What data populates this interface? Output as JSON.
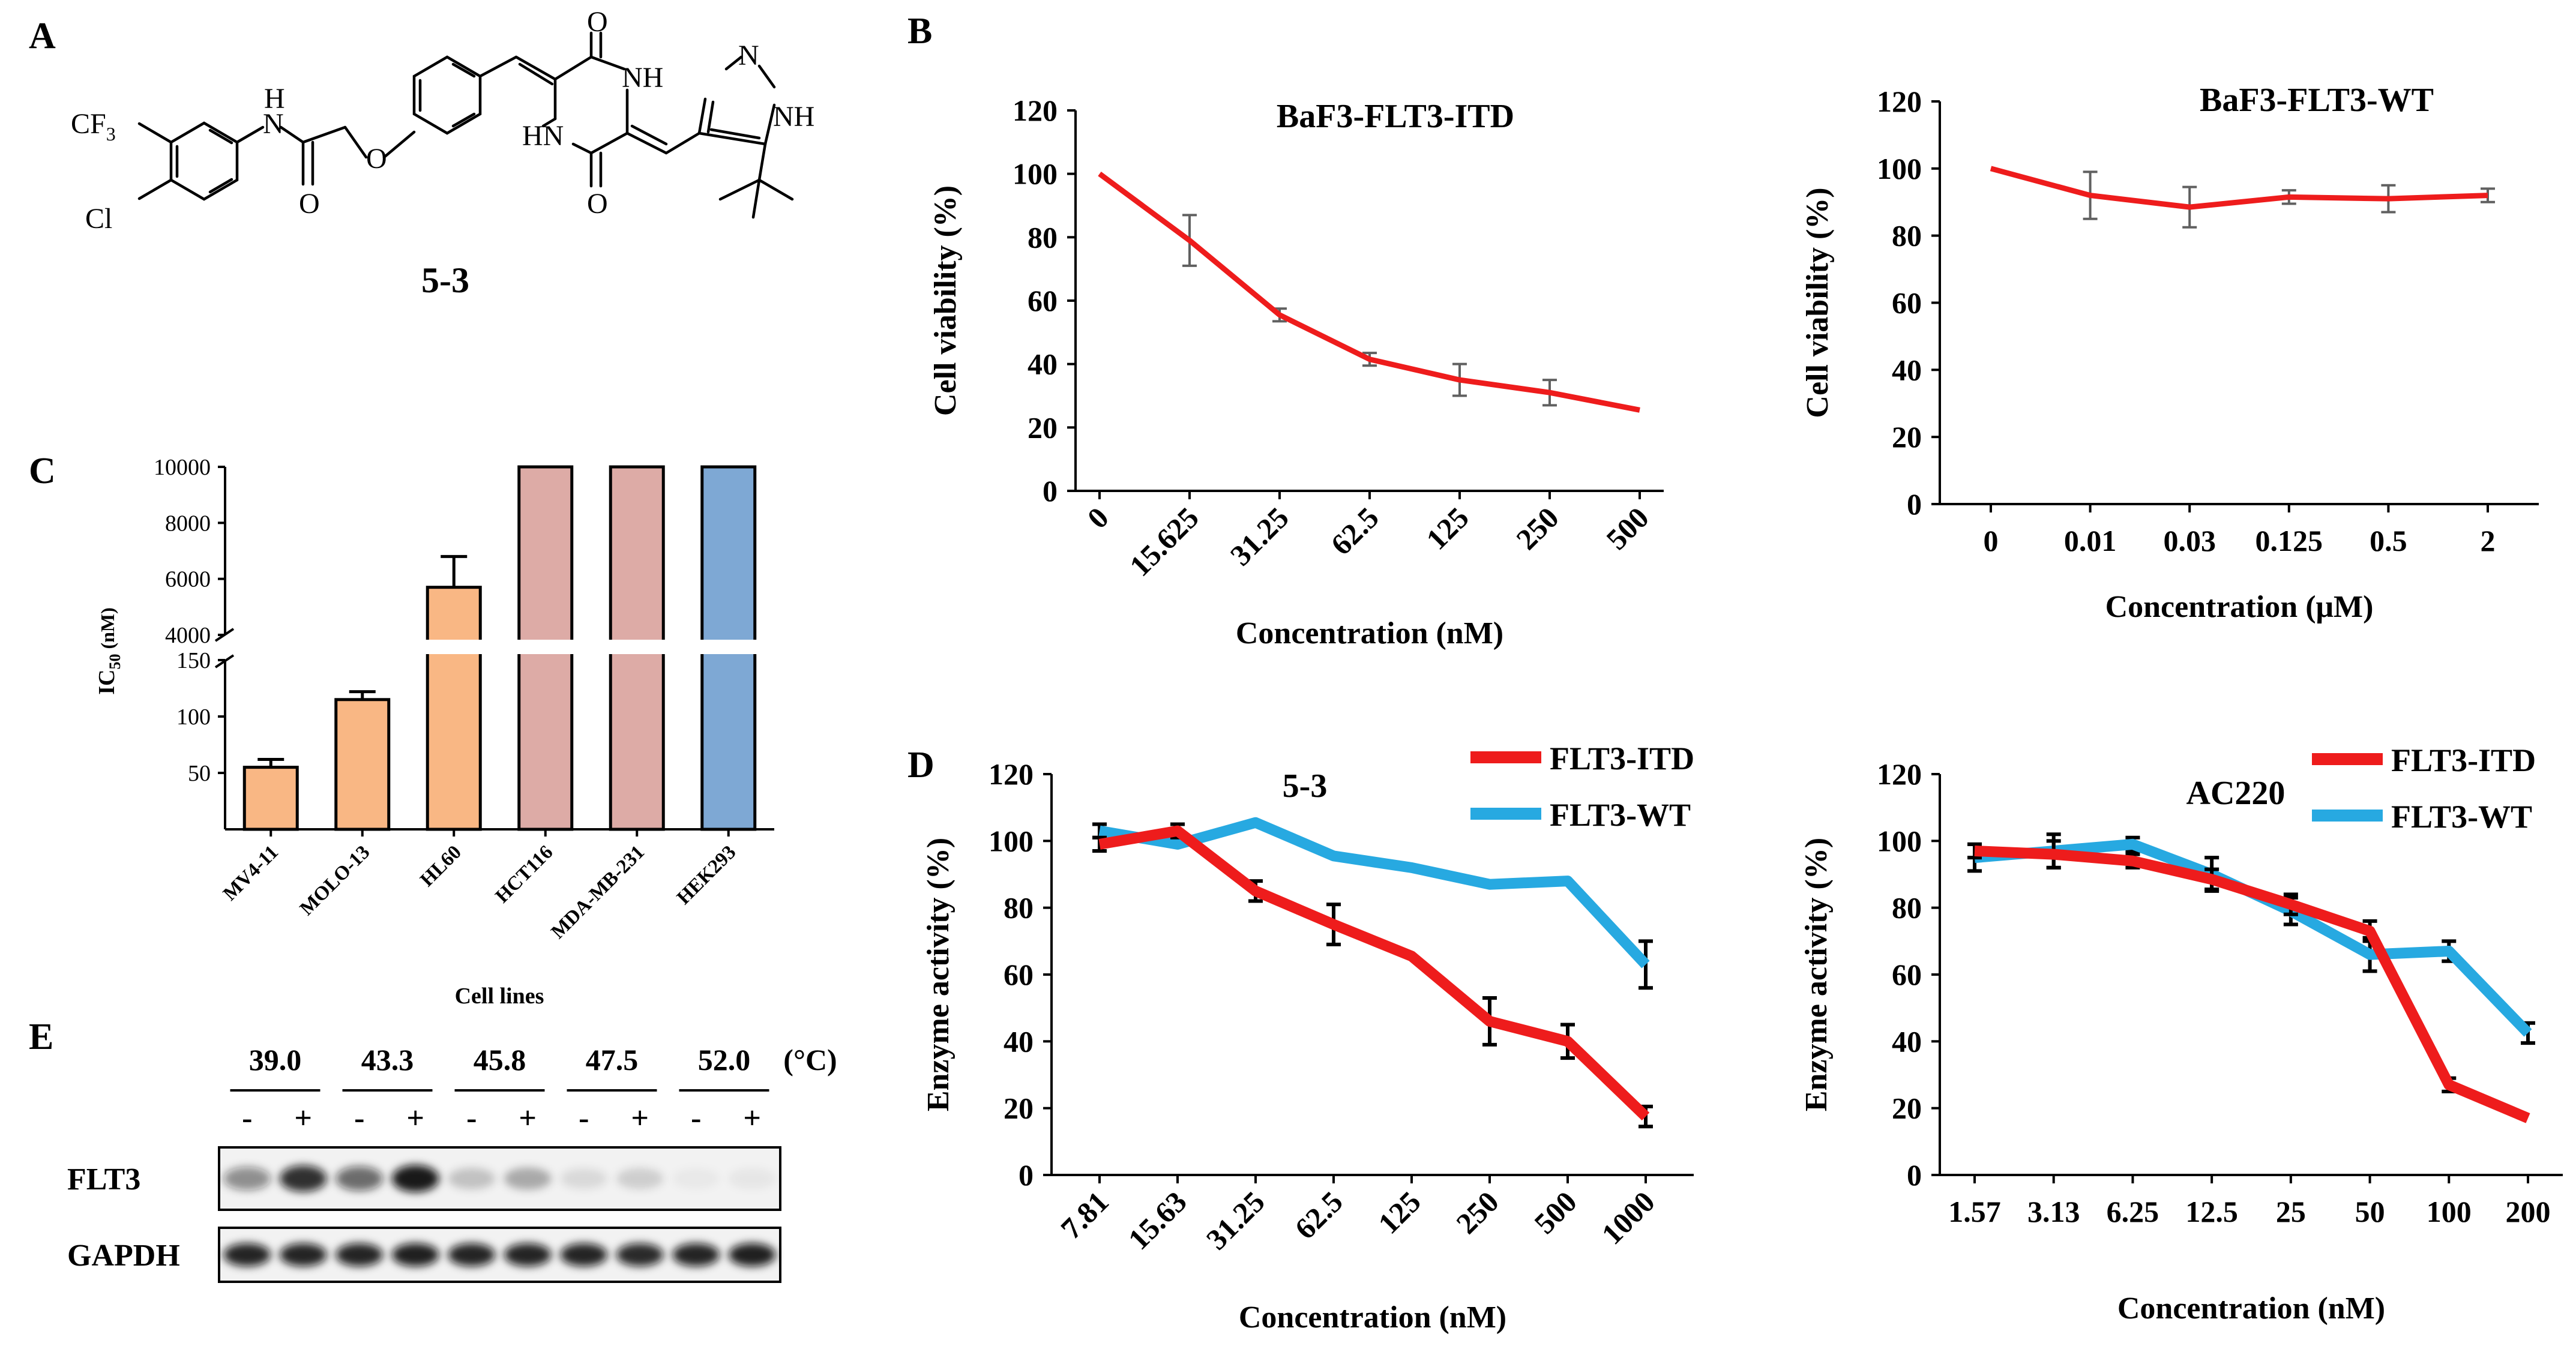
{
  "panel_labels": {
    "a": "A",
    "b": "B",
    "c": "C",
    "d": "D",
    "e": "E"
  },
  "molecule": {
    "name": "5-3",
    "atoms": {
      "cf3": "CF",
      "cf3_sub": "3",
      "cl": "Cl",
      "nh_amide": "N",
      "h_amide": "H",
      "o_carbonyl": "O",
      "o_ether": "O",
      "o_top": "O",
      "o_bottom": "O",
      "nh_ring1": "NH",
      "hn_ring2": "HN",
      "n_imid": "N",
      "nh_imid": "NH"
    }
  },
  "colors": {
    "red": "#ee1c1c",
    "blue": "#27a9e1",
    "orange": "#f9b784",
    "pink": "#ddaba6",
    "steelblue": "#7ea8d4",
    "error": "#606060"
  },
  "chart_data": [
    {
      "id": "b1",
      "type": "line",
      "title": "BaF3-FLT3-ITD",
      "xlabel": "Concentration (nM)",
      "ylabel": "Cell viability (%)",
      "categories": [
        "0",
        "15.625",
        "31.25",
        "62.5",
        "125",
        "250",
        "500"
      ],
      "series": [
        {
          "name": "BaF3-FLT3-ITD",
          "color": "#ee1c1c",
          "values": [
            100,
            79,
            55.5,
            41.5,
            35,
            31,
            25.5
          ],
          "errors": [
            0,
            8,
            2,
            2,
            5,
            4,
            0
          ]
        }
      ],
      "ylim": [
        0,
        120
      ],
      "yticks": [
        "0",
        "20",
        "40",
        "60",
        "80",
        "100",
        "120"
      ]
    },
    {
      "id": "b2",
      "type": "line",
      "title": "BaF3-FLT3-WT",
      "xlabel": "Concentration (μM)",
      "ylabel": "Cell viability (%)",
      "categories": [
        "0",
        "0.01",
        "0.03",
        "0.125",
        "0.5",
        "2"
      ],
      "series": [
        {
          "name": "BaF3-FLT3-WT",
          "color": "#ee1c1c",
          "values": [
            100,
            92,
            88.5,
            91.5,
            91,
            92
          ],
          "errors": [
            0,
            7,
            6,
            2,
            4,
            2
          ]
        }
      ],
      "ylim": [
        0,
        120
      ],
      "yticks": [
        "0",
        "20",
        "40",
        "60",
        "80",
        "100",
        "120"
      ]
    },
    {
      "id": "c",
      "type": "bar",
      "xlabel": "Cell lines",
      "ylabel": "IC",
      "ylabel_sub": "50",
      "ylabel_unit": " (nM)",
      "categories": [
        "MV4-11",
        "MOLO-13",
        "HL60",
        "HCT116",
        "MDA-MB-231",
        "HEK293"
      ],
      "values": [
        55,
        115,
        5700,
        10000,
        10000,
        10000
      ],
      "errors": [
        7,
        7,
        1100,
        0,
        0,
        0
      ],
      "bar_colors": [
        "#f9b784",
        "#f9b784",
        "#f9b784",
        "#ddaba6",
        "#ddaba6",
        "#7ea8d4"
      ],
      "ylim_lower": [
        0,
        150
      ],
      "ylim_upper": [
        4000,
        10000
      ],
      "yticks_lower": [
        "50",
        "100",
        "150"
      ],
      "yticks_upper": [
        "4000",
        "6000",
        "8000",
        "10000"
      ],
      "axis_break": true
    },
    {
      "id": "d1",
      "type": "line",
      "title": "5-3",
      "xlabel": "Concentration (nM)",
      "ylabel": "Enzyme activity (%)",
      "categories": [
        "7.81",
        "15.63",
        "31.25",
        "62.5",
        "125",
        "250",
        "500",
        "1000"
      ],
      "series": [
        {
          "name": "FLT3-ITD",
          "color": "#ee1c1c",
          "values": [
            99,
            103,
            85,
            75,
            65.5,
            46,
            40,
            17.5
          ],
          "errors": [
            2,
            2,
            3,
            6,
            0,
            7,
            5,
            3
          ]
        },
        {
          "name": "FLT3-WT",
          "color": "#27a9e1",
          "values": [
            103,
            99,
            105.5,
            95.5,
            92,
            87,
            88,
            63
          ],
          "errors": [
            2,
            0,
            0,
            0,
            0,
            0,
            0,
            7
          ]
        }
      ],
      "ylim": [
        0,
        120
      ],
      "yticks": [
        "0",
        "20",
        "40",
        "60",
        "80",
        "100",
        "120"
      ],
      "legend": "top-right"
    },
    {
      "id": "d2",
      "type": "line",
      "title": "AC220",
      "xlabel": "Concentration (nM)",
      "ylabel": "Enzyme activity (%)",
      "categories": [
        "1.57",
        "3.13",
        "6.25",
        "12.5",
        "25",
        "50",
        "100",
        "200"
      ],
      "series": [
        {
          "name": "FLT3-ITD",
          "color": "#ee1c1c",
          "values": [
            97,
            96,
            94,
            88.5,
            81,
            73,
            27,
            17
          ],
          "errors": [
            2,
            4,
            2,
            3,
            3,
            3,
            2,
            0
          ]
        },
        {
          "name": "FLT3-WT",
          "color": "#27a9e1",
          "values": [
            95,
            97,
            99,
            90,
            79,
            66,
            67,
            42.5
          ],
          "errors": [
            4,
            5,
            2,
            5,
            4,
            5,
            3,
            3
          ]
        }
      ],
      "ylim": [
        0,
        120
      ],
      "yticks": [
        "0",
        "20",
        "40",
        "60",
        "80",
        "100",
        "120"
      ],
      "legend": "top-right"
    }
  ],
  "blot": {
    "temps": [
      "39.0",
      "43.3",
      "45.8",
      "47.5",
      "52.0"
    ],
    "unit": "(°C)",
    "treatments": [
      "-",
      "+",
      "-",
      "+",
      "-",
      "+",
      "-",
      "+",
      "-",
      "+"
    ],
    "rows": [
      {
        "label": "FLT3",
        "intensity": [
          0.45,
          0.85,
          0.6,
          0.95,
          0.2,
          0.3,
          0.1,
          0.15,
          0.04,
          0.05
        ]
      },
      {
        "label": "GAPDH",
        "intensity": [
          0.9,
          0.9,
          0.9,
          0.92,
          0.9,
          0.9,
          0.9,
          0.88,
          0.9,
          0.92
        ]
      }
    ]
  }
}
